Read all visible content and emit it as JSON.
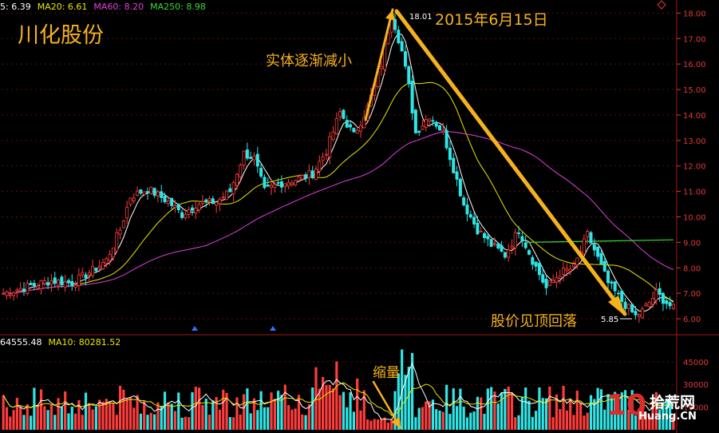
{
  "chart_data": {
    "type": "candlestick",
    "title": "川化股份",
    "price_legend": [
      {
        "label": "5: 6.39",
        "color": "#ffffff"
      },
      {
        "label": "MA20: 6.61",
        "color": "#e8e800"
      },
      {
        "label": "MA60: 8.20",
        "color": "#e040e0"
      },
      {
        "label": "MA250: 8.98",
        "color": "#33dd33"
      }
    ],
    "volume_legend": [
      {
        "label": "64555.48",
        "color": "#ffffff"
      },
      {
        "label": "MA10: 80281.52",
        "color": "#e8e800"
      }
    ],
    "price_axis": {
      "ticks": [
        "18.00",
        "17.00",
        "16.00",
        "15.00",
        "14.00",
        "13.00",
        "12.00",
        "11.00",
        "10.00",
        "9.00",
        "8.00",
        "7.00",
        "6.00"
      ],
      "ylim": [
        5.5,
        18.2
      ]
    },
    "volume_axis": {
      "ticks": [
        "45000",
        "30000",
        "15000"
      ]
    },
    "high_label": "18.01",
    "low_label": "5.85",
    "annotations": {
      "date": "2015年6月15日",
      "shrinking_body": "实体逐渐减小",
      "top_fall": "股价见顶回落",
      "volume_shrink": "缩量"
    },
    "price_waypoints": [
      [
        0,
        7.0
      ],
      [
        8,
        7.3
      ],
      [
        14,
        7.5
      ],
      [
        20,
        7.4
      ],
      [
        26,
        7.9
      ],
      [
        30,
        8.3
      ],
      [
        34,
        9.5
      ],
      [
        37,
        10.8
      ],
      [
        42,
        11.1
      ],
      [
        48,
        10.6
      ],
      [
        52,
        10.1
      ],
      [
        56,
        10.5
      ],
      [
        62,
        10.6
      ],
      [
        66,
        11.0
      ],
      [
        70,
        12.5
      ],
      [
        73,
        12.3
      ],
      [
        76,
        11.0
      ],
      [
        80,
        11.3
      ],
      [
        86,
        11.5
      ],
      [
        90,
        11.7
      ],
      [
        94,
        12.6
      ],
      [
        98,
        14.1
      ],
      [
        102,
        13.2
      ],
      [
        106,
        14.3
      ],
      [
        110,
        16.0
      ],
      [
        113,
        18.0
      ],
      [
        116,
        16.5
      ],
      [
        118,
        15.1
      ],
      [
        120,
        13.3
      ],
      [
        124,
        14.0
      ],
      [
        128,
        13.3
      ],
      [
        131,
        11.9
      ],
      [
        134,
        10.5
      ],
      [
        138,
        9.5
      ],
      [
        142,
        8.9
      ],
      [
        146,
        8.5
      ],
      [
        150,
        9.5
      ],
      [
        154,
        8.3
      ],
      [
        158,
        7.2
      ],
      [
        162,
        7.8
      ],
      [
        166,
        8.0
      ],
      [
        170,
        9.3
      ],
      [
        172,
        8.7
      ],
      [
        176,
        7.4
      ],
      [
        180,
        6.7
      ],
      [
        184,
        6.1
      ],
      [
        186,
        6.3
      ],
      [
        190,
        7.0
      ],
      [
        195,
        6.4
      ]
    ],
    "ma250_segment": [
      [
        152,
        9.0
      ],
      [
        195,
        9.1
      ]
    ]
  },
  "watermark": {
    "digits": "10",
    "title": "拾荒网",
    "url": "Huang.CN"
  }
}
